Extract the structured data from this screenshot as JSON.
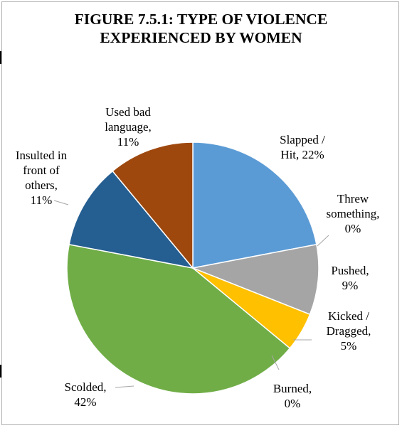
{
  "chart_data": {
    "type": "pie",
    "title": "FIGURE 7.5.1: TYPE OF VIOLENCE\nEXPERIENCED BY WOMEN",
    "slices": [
      {
        "label": "Slapped / Hit",
        "value": 22,
        "display": "22%",
        "color": "#5b9bd5"
      },
      {
        "label": "Threw something",
        "value": 0,
        "display": "0%",
        "color": "#ed7d31"
      },
      {
        "label": "Pushed",
        "value": 9,
        "display": "9%",
        "color": "#a5a5a5"
      },
      {
        "label": "Kicked / Dragged",
        "value": 5,
        "display": "5%",
        "color": "#ffc000"
      },
      {
        "label": "Burned",
        "value": 0,
        "display": "0%",
        "color": "#4472c4"
      },
      {
        "label": "Scolded",
        "value": 42,
        "display": "42%",
        "color": "#70ad47"
      },
      {
        "label": "Insulted in front of others",
        "value": 11,
        "display": "11%",
        "color": "#255e91"
      },
      {
        "label": "Used bad language",
        "value": 11,
        "display": "11%",
        "color": "#9e480e"
      }
    ],
    "start_angle_deg": 0,
    "direction": "clockwise",
    "legend": "none",
    "labels": [
      {
        "lines": [
          "Slapped /",
          "Hit, 22%"
        ]
      },
      {
        "lines": [
          "Threw",
          "something,",
          "0%"
        ]
      },
      {
        "lines": [
          "Pushed,",
          "9%"
        ]
      },
      {
        "lines": [
          "Kicked /",
          "Dragged,",
          "5%"
        ]
      },
      {
        "lines": [
          "Burned,",
          "0%"
        ]
      },
      {
        "lines": [
          "Scolded,",
          "42%"
        ]
      },
      {
        "lines": [
          "Insulted in",
          "front of",
          "others,",
          "11%"
        ]
      },
      {
        "lines": [
          "Used bad",
          "language,",
          "11%"
        ]
      }
    ]
  }
}
